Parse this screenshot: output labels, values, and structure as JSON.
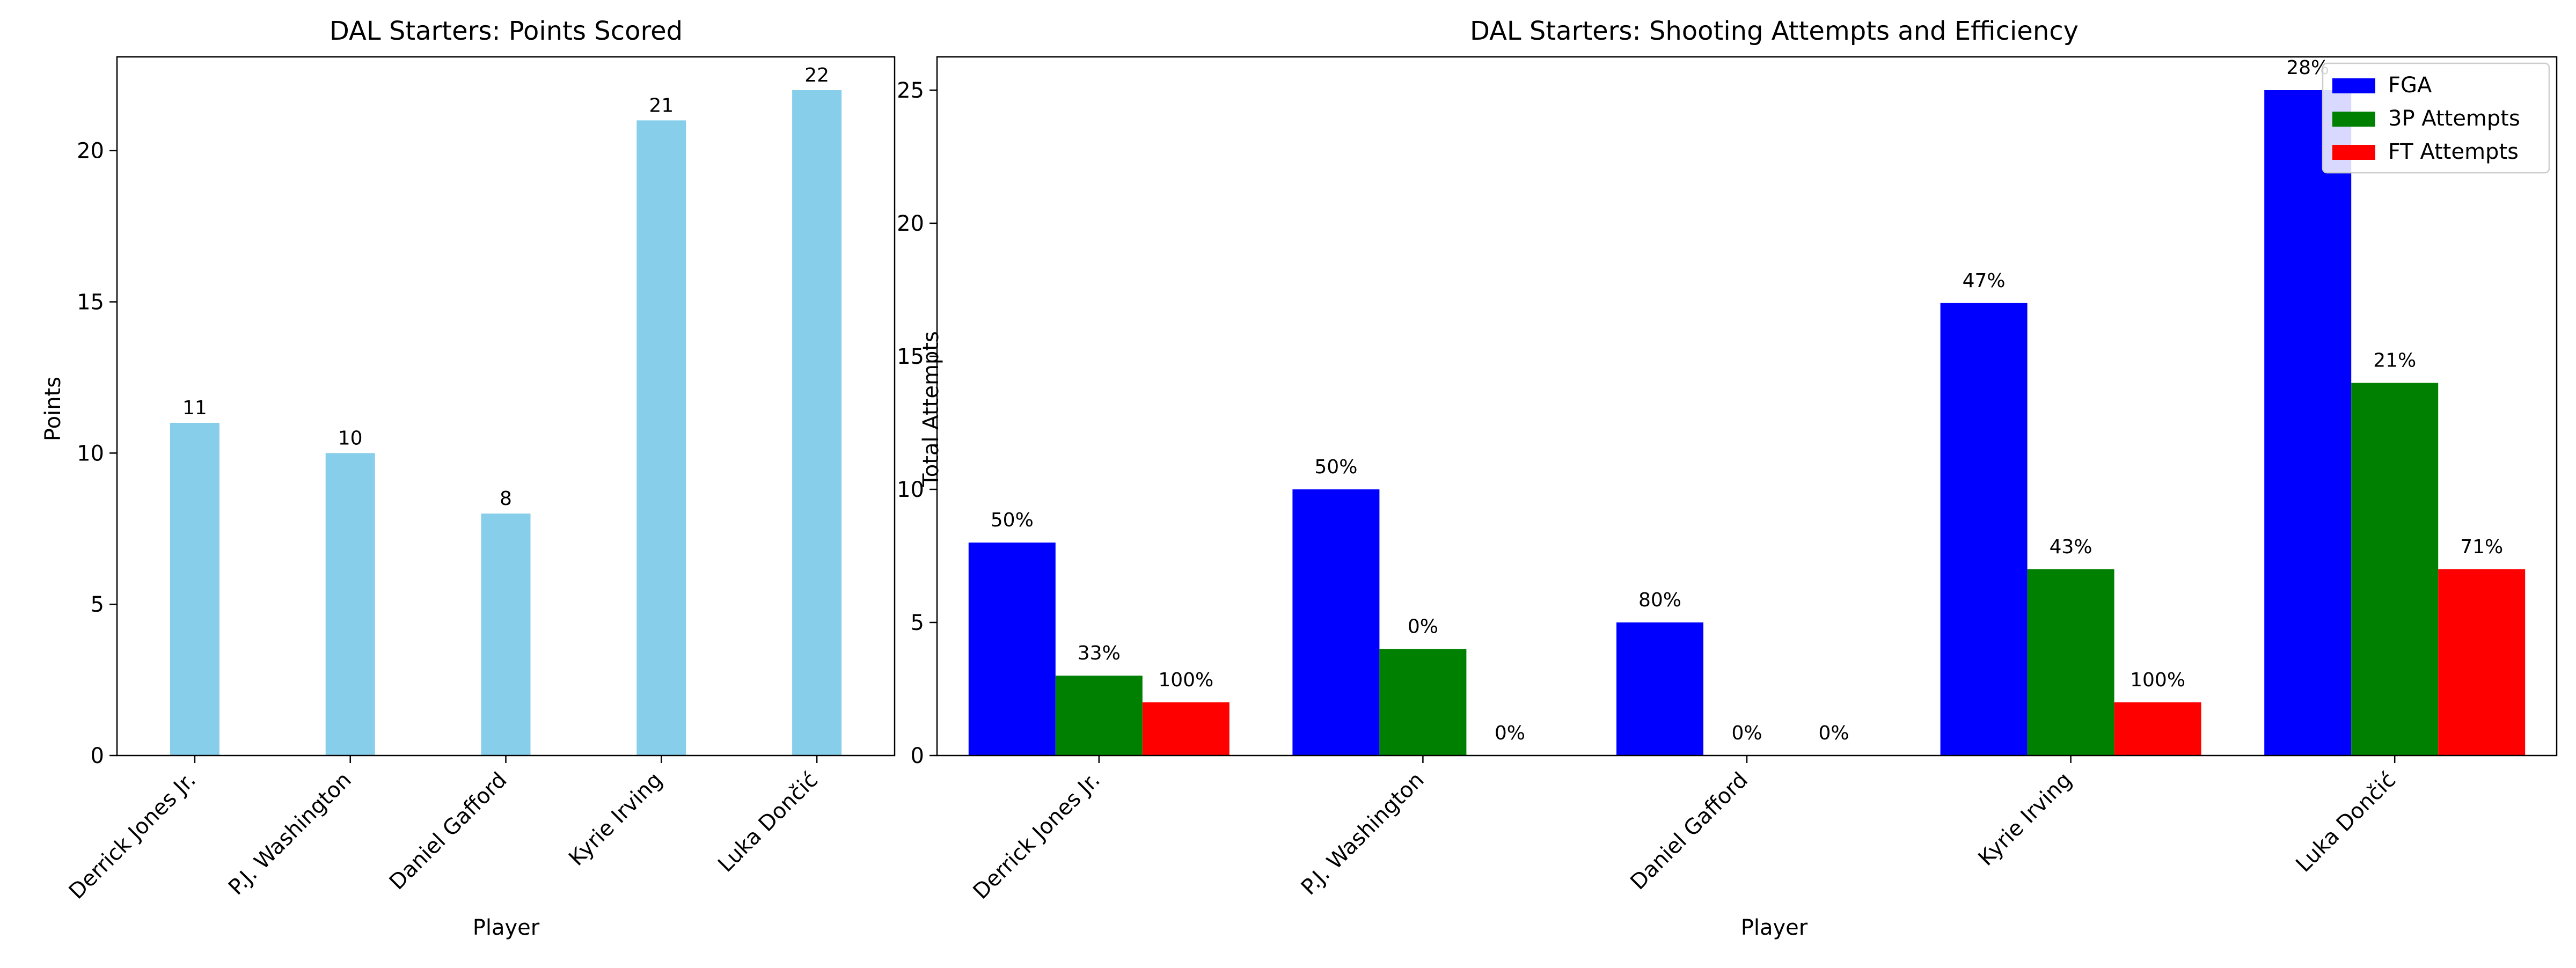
{
  "chart_data": [
    {
      "type": "bar",
      "title": "DAL Starters: Points Scored",
      "xlabel": "Player",
      "ylabel": "Points",
      "categories": [
        "Derrick Jones Jr.",
        "P.J. Washington",
        "Daniel Gafford",
        "Kyrie Irving",
        "Luka Dončić"
      ],
      "series": [
        {
          "values": [
            11,
            10,
            8,
            21,
            22
          ],
          "color": "#87ceeb"
        }
      ],
      "data_labels": [
        "11",
        "10",
        "8",
        "21",
        "22"
      ],
      "ylim": [
        0,
        23.1
      ],
      "yticks": [
        0,
        5,
        10,
        15,
        20
      ],
      "grid": false,
      "legend": "none"
    },
    {
      "type": "bar",
      "title": "DAL Starters: Shooting Attempts and Efficiency",
      "xlabel": "Player",
      "ylabel": "Total Attempts",
      "categories": [
        "Derrick Jones Jr.",
        "P.J. Washington",
        "Daniel Gafford",
        "Kyrie Irving",
        "Luka Dončić"
      ],
      "series": [
        {
          "name": "FGA",
          "values": [
            8,
            10,
            5,
            17,
            25
          ],
          "labels": [
            "50%",
            "50%",
            "80%",
            "47%",
            "28%"
          ],
          "color": "#0000ff"
        },
        {
          "name": "3P Attempts",
          "values": [
            3,
            4,
            0,
            7,
            14
          ],
          "labels": [
            "33%",
            "0%",
            "0%",
            "43%",
            "21%"
          ],
          "color": "#008000"
        },
        {
          "name": "FT Attempts",
          "values": [
            2,
            0,
            0,
            2,
            7
          ],
          "labels": [
            "100%",
            "0%",
            "0%",
            "100%",
            "71%"
          ],
          "color": "#ff0000"
        }
      ],
      "ylim": [
        0,
        26.25
      ],
      "yticks": [
        0,
        5,
        10,
        15,
        20,
        25
      ],
      "grid": false,
      "legend": "top-right"
    }
  ]
}
